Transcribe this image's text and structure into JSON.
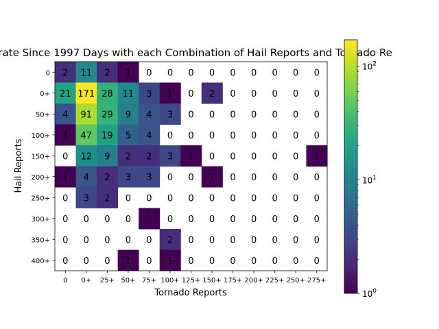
{
  "chart_data": {
    "type": "heatmap",
    "title": "erate Since 1997 Days with each Combination of Hail Reports and Tornado Re",
    "xlabel": "Tornado Reports",
    "ylabel": "Hail Reports",
    "x_categories": [
      "0",
      "0+",
      "25+",
      "50+",
      "75+",
      "100+",
      "125+",
      "150+",
      "175+",
      "200+",
      "225+",
      "250+",
      "275+"
    ],
    "y_categories": [
      "0",
      "0+",
      "50+",
      "100+",
      "150+",
      "200+",
      "250+",
      "300+",
      "350+",
      "400+"
    ],
    "values": [
      [
        2,
        11,
        2,
        1,
        0,
        0,
        0,
        0,
        0,
        0,
        0,
        0,
        0
      ],
      [
        21,
        171,
        28,
        11,
        3,
        1,
        0,
        2,
        0,
        0,
        0,
        0,
        0
      ],
      [
        4,
        91,
        29,
        9,
        4,
        3,
        0,
        0,
        0,
        0,
        0,
        0,
        0
      ],
      [
        1,
        47,
        19,
        5,
        4,
        0,
        0,
        0,
        0,
        0,
        0,
        0,
        0
      ],
      [
        0,
        12,
        9,
        2,
        2,
        3,
        1,
        0,
        0,
        0,
        0,
        0,
        1
      ],
      [
        1,
        4,
        2,
        3,
        3,
        0,
        0,
        1,
        0,
        0,
        0,
        0,
        0
      ],
      [
        0,
        3,
        2,
        0,
        0,
        0,
        0,
        0,
        0,
        0,
        0,
        0,
        0
      ],
      [
        0,
        0,
        0,
        0,
        1,
        0,
        0,
        0,
        0,
        0,
        0,
        0,
        0
      ],
      [
        0,
        0,
        0,
        0,
        0,
        2,
        0,
        0,
        0,
        0,
        0,
        0,
        0
      ],
      [
        0,
        0,
        0,
        1,
        0,
        1,
        0,
        0,
        0,
        0,
        0,
        0,
        0
      ]
    ],
    "color_scale": "log",
    "colormap": "viridis",
    "colorbar_range": [
      1,
      171
    ],
    "colorbar_ticks": [
      {
        "base": "10",
        "exp": "0",
        "value": 1
      },
      {
        "base": "10",
        "exp": "1",
        "value": 10
      },
      {
        "base": "10",
        "exp": "2",
        "value": 100
      }
    ],
    "zero_cells": "white"
  }
}
